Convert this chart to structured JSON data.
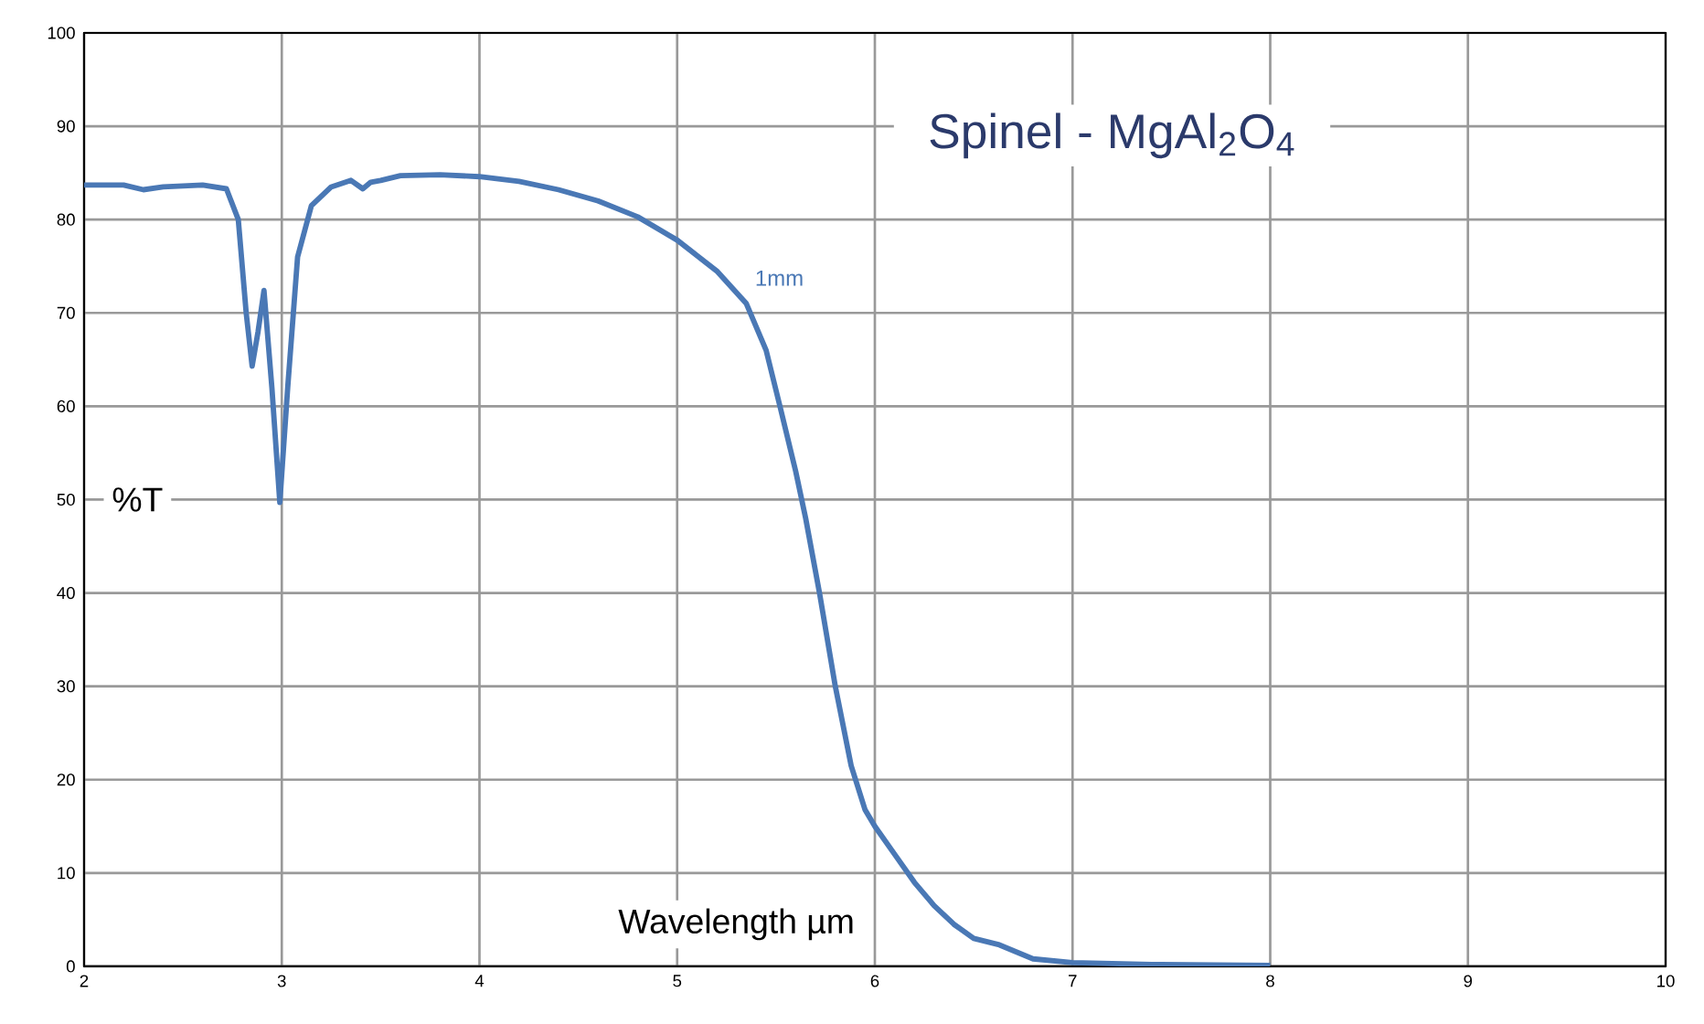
{
  "chart_data": {
    "type": "line",
    "title": "Spinel - MgAl$_{2}$O$_{4}$",
    "xlabel": "Wavelength µm",
    "ylabel": "%T",
    "xlim": [
      2,
      10
    ],
    "ylim": [
      0,
      100
    ],
    "xticks": [
      2,
      3,
      4,
      5,
      6,
      7,
      8,
      9,
      10
    ],
    "yticks": [
      0,
      10,
      20,
      30,
      40,
      50,
      60,
      70,
      80,
      90,
      100
    ],
    "grid": true,
    "legend": false,
    "marker": "none",
    "line_style": "solid",
    "series": [
      {
        "name": "1mm",
        "color": "#4a78b5",
        "x": [
          2.0,
          2.2,
          2.3,
          2.4,
          2.6,
          2.72,
          2.78,
          2.82,
          2.85,
          2.88,
          2.91,
          2.95,
          2.99,
          3.03,
          3.08,
          3.15,
          3.25,
          3.35,
          3.41,
          3.45,
          3.5,
          3.6,
          3.8,
          4.0,
          4.2,
          4.4,
          4.6,
          4.8,
          5.0,
          5.2,
          5.35,
          5.45,
          5.52,
          5.6,
          5.65,
          5.72,
          5.8,
          5.88,
          5.95,
          6.0,
          6.1,
          6.2,
          6.3,
          6.4,
          6.5,
          6.63,
          6.8,
          7.0,
          7.4,
          8.0
        ],
        "values": [
          83.7,
          83.7,
          83.2,
          83.5,
          83.7,
          83.3,
          80,
          70,
          64.3,
          68,
          72.4,
          62,
          49.7,
          62,
          76,
          81.5,
          83.5,
          84.2,
          83.3,
          84,
          84.2,
          84.7,
          84.8,
          84.6,
          84.1,
          83.2,
          82,
          80.3,
          77.8,
          74.5,
          71,
          66,
          60,
          53,
          48,
          40,
          30,
          21.5,
          16.8,
          15,
          12,
          9,
          6.5,
          4.5,
          3,
          2.3,
          0.8,
          0.4,
          0.2,
          0.1
        ]
      }
    ]
  }
}
